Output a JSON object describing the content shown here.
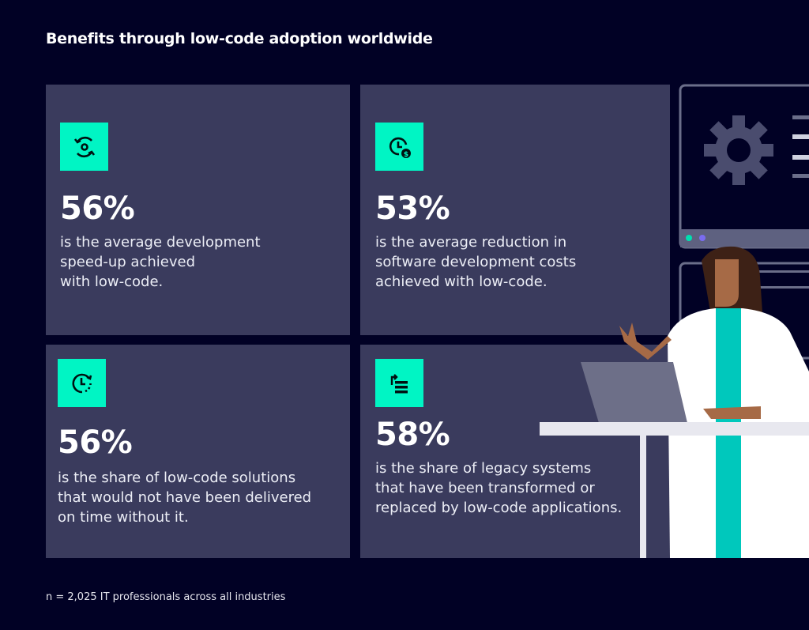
{
  "title": "Benefits through low-code adoption worldwide",
  "colors": {
    "background": "#010125",
    "card": "#3a3b5d",
    "accent": "#00f5c4"
  },
  "cards": [
    {
      "icon": "cycle-gear-icon",
      "value": "56%",
      "lines": [
        "is the average development",
        "speed-up achieved",
        "with low-code."
      ]
    },
    {
      "icon": "clock-dollar-icon",
      "value": "53%",
      "lines": [
        "is the average reduction in",
        "software development costs",
        "achieved with low-code."
      ]
    },
    {
      "icon": "clock-refresh-icon",
      "value": "56%",
      "lines": [
        "is the share of low-code solutions",
        "that would not have been delivered",
        "on time without it."
      ]
    },
    {
      "icon": "transform-list-icon",
      "value": "58%",
      "lines": [
        "is the share of legacy systems",
        "that have been transformed or",
        "replaced by low-code applications."
      ]
    }
  ],
  "footnote": "n = 2,025 IT professionals across all industries"
}
